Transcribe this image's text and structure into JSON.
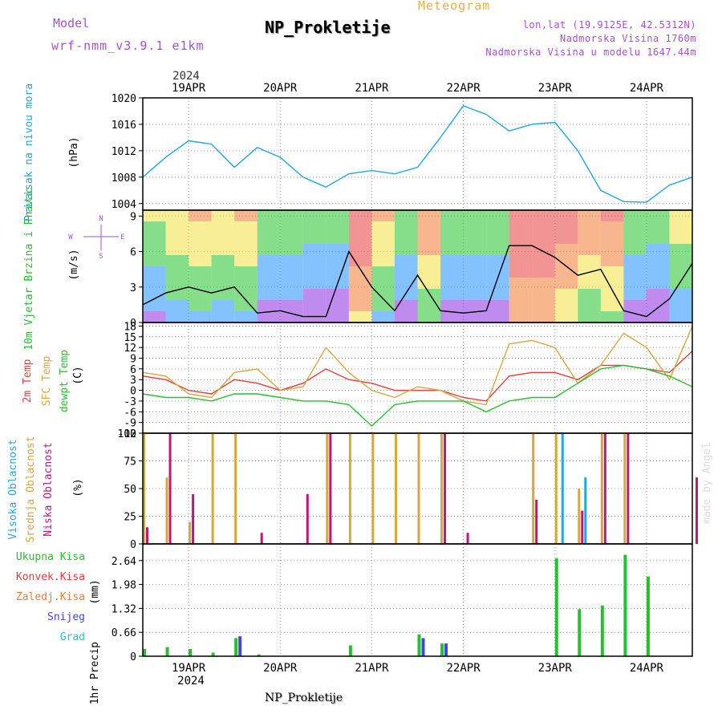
{
  "header": {
    "model_label": "Model",
    "model_name": "wrf-nmm_v3.9.1 e1km",
    "title": "NP_Prokletije",
    "subtitle": "Meteogram",
    "location": "lon,lat (19.9125E, 42.5312N)",
    "elevation": "Nadmorska Visina 1760m",
    "model_elevation": "Nadmorska Visina u modelu 1647.44m"
  },
  "top_axis": {
    "year": "2024",
    "dates": [
      "19APR",
      "20APR",
      "21APR",
      "22APR",
      "23APR",
      "24APR"
    ]
  },
  "bottom_axis": {
    "year": "2024",
    "dates": [
      "19APR",
      "20APR",
      "21APR",
      "22APR",
      "23APR",
      "24APR"
    ]
  },
  "footer": "NP_Prokletije",
  "watermark": "made by Angel",
  "colors": {
    "pressure": "#1ea7e6",
    "wind_label": "#22c22a",
    "temp2m": "#e83c3c",
    "sfc": "#d9a63a",
    "dewpt": "#22c22a",
    "high_cloud": "#1ea7e6",
    "mid_cloud": "#d9a63a",
    "low_cloud": "#c0157d",
    "rain_total": "#22c22a",
    "rain_conv": "#e83c3c",
    "freezing": "#f07a30",
    "snow": "#3f49d8",
    "graupel": "#1ec6c6",
    "direction": "#a64fd6"
  },
  "chart_data": [
    {
      "type": "line",
      "panel": "pressure",
      "ylabel": "Pritisak na nivou mora",
      "unit": "(hPa)",
      "ylim": [
        1003,
        1020
      ],
      "yticks": [
        "1004",
        "1008",
        "1012",
        "1016",
        "1020"
      ],
      "x": [
        0,
        6,
        12,
        18,
        24,
        30,
        36,
        42,
        48,
        54,
        60,
        66,
        72,
        78,
        84,
        90,
        96,
        102,
        108,
        114,
        120,
        126,
        132,
        138,
        144
      ],
      "series": [
        {
          "values": [
            1008,
            1011,
            1013.5,
            1013,
            1009.5,
            1012.5,
            1011,
            1008,
            1006.5,
            1008.5,
            1009,
            1008.5,
            1009.5,
            1014,
            1018.8,
            1017.5,
            1015,
            1016,
            1016.3,
            1012,
            1006,
            1004.3,
            1004.2,
            1006.8,
            1008
          ]
        }
      ]
    },
    {
      "type": "line",
      "panel": "wind",
      "ylabel": "10m Vjetar Brzina i Pravac",
      "unit": "(m/s)",
      "direction_legend": {
        "n": "N",
        "w": "W",
        "e": "E",
        "s": "S"
      },
      "ylim": [
        0,
        9.5
      ],
      "yticks": [
        "0",
        "3",
        "6",
        "9"
      ],
      "x": [
        0,
        6,
        12,
        18,
        24,
        30,
        36,
        42,
        48,
        54,
        60,
        66,
        72,
        78,
        84,
        90,
        96,
        102,
        108,
        114,
        120,
        126,
        132,
        138,
        144
      ],
      "series": [
        {
          "values": [
            1.5,
            2.5,
            3,
            2.5,
            3,
            0.8,
            1,
            0.5,
            0.5,
            6,
            3,
            1,
            4,
            1,
            0.8,
            1,
            6.5,
            6.5,
            5.5,
            4,
            4.5,
            1,
            0.5,
            2,
            5
          ]
        }
      ]
    },
    {
      "type": "line",
      "panel": "temperature",
      "ylabels": [
        "2m Temp",
        "SFC Temp",
        "dewpt Temp"
      ],
      "unit": "(C)",
      "ylim": [
        -12,
        19
      ],
      "yticks": [
        "-12",
        "-9",
        "-6",
        "-3",
        "0",
        "3",
        "6",
        "9",
        "12",
        "15",
        "18"
      ],
      "x": [
        0,
        6,
        12,
        18,
        24,
        30,
        36,
        42,
        48,
        54,
        60,
        66,
        72,
        78,
        84,
        90,
        96,
        102,
        108,
        114,
        120,
        126,
        132,
        138,
        144
      ],
      "series": [
        {
          "name": "2m Temp",
          "values": [
            4,
            3,
            0,
            -1,
            3,
            2,
            0,
            2,
            6,
            3,
            2,
            0,
            0,
            0,
            -2,
            -3,
            4,
            5,
            5,
            3,
            7,
            7,
            6,
            5,
            11
          ]
        },
        {
          "name": "SFC Temp",
          "values": [
            5,
            4,
            -1,
            -2,
            5,
            6,
            0,
            1,
            12,
            5,
            0,
            -2,
            1,
            0,
            -3,
            -4,
            13,
            14,
            12,
            2,
            7,
            16,
            12,
            3,
            18
          ]
        },
        {
          "name": "dewpt Temp",
          "values": [
            -1,
            -2,
            -2,
            -3,
            -1,
            -1,
            -2,
            -3,
            -3,
            -4,
            -10,
            -4,
            -3,
            -3,
            -3,
            -6,
            -3,
            -2,
            -2,
            2,
            6,
            7,
            6,
            4,
            1
          ]
        }
      ]
    },
    {
      "type": "bar",
      "panel": "cloud",
      "ylabels": [
        "Visoka Oblacnost",
        "Srednja Oblacnost",
        "Niska Oblacnost"
      ],
      "unit": "(%)",
      "ylim": [
        0,
        100
      ],
      "yticks": [
        "0",
        "25",
        "50",
        "75",
        "100"
      ],
      "x": [
        0,
        6,
        12,
        18,
        24,
        30,
        36,
        42,
        48,
        54,
        60,
        66,
        72,
        78,
        84,
        90,
        96,
        102,
        108,
        114,
        120,
        126,
        132,
        138,
        144
      ],
      "series": [
        {
          "name": "Srednja Oblacnost",
          "values": [
            100,
            60,
            20,
            100,
            100,
            0,
            0,
            0,
            100,
            100,
            100,
            100,
            100,
            100,
            0,
            0,
            0,
            100,
            100,
            50,
            100,
            100,
            0,
            0,
            0
          ]
        },
        {
          "name": "Niska Oblacnost",
          "values": [
            15,
            100,
            45,
            0,
            0,
            10,
            0,
            45,
            100,
            0,
            0,
            0,
            0,
            100,
            10,
            0,
            0,
            40,
            0,
            30,
            100,
            100,
            0,
            0,
            60
          ]
        },
        {
          "name": "Visoka Oblacnost",
          "values": [
            0,
            0,
            0,
            0,
            0,
            0,
            0,
            0,
            0,
            0,
            0,
            0,
            0,
            0,
            0,
            0,
            0,
            0,
            100,
            60,
            0,
            0,
            0,
            0,
            0
          ]
        }
      ]
    },
    {
      "type": "bar",
      "panel": "precip",
      "ylabel": "1hr Precip",
      "unit": "(mm)",
      "legend": [
        "Ukupna Kisa",
        "Konvek.Kisa",
        "Zaledj.Kisa",
        "Snijeg",
        "Grad"
      ],
      "ylim": [
        0,
        3.1
      ],
      "yticks": [
        "0",
        "0.66",
        "1.32",
        "1.98",
        "2.64"
      ],
      "x": [
        0,
        6,
        12,
        18,
        24,
        30,
        36,
        42,
        48,
        54,
        60,
        66,
        72,
        78,
        84,
        90,
        96,
        102,
        108,
        114,
        120,
        126,
        132,
        138,
        144
      ],
      "series": [
        {
          "name": "Ukupna Kisa",
          "values": [
            0.2,
            0.25,
            0.2,
            0.1,
            0.5,
            0.05,
            0,
            0,
            0,
            0.3,
            0,
            0,
            0.6,
            0.35,
            0,
            0,
            0,
            0,
            2.7,
            1.3,
            1.4,
            2.8,
            2.2,
            0,
            0
          ]
        },
        {
          "name": "Snijeg",
          "values": [
            0,
            0,
            0,
            0,
            0.55,
            0,
            0,
            0,
            0,
            0,
            0,
            0,
            0.5,
            0.35,
            0,
            0,
            0,
            0,
            0,
            0,
            0,
            0,
            0,
            0,
            0
          ]
        }
      ]
    }
  ]
}
